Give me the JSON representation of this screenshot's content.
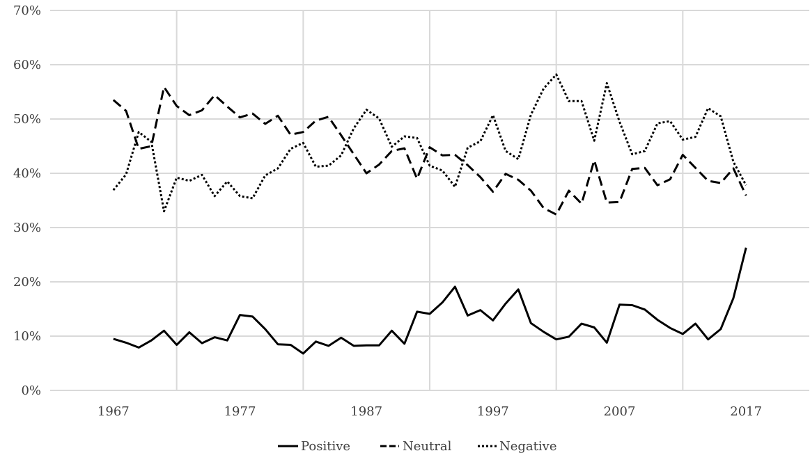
{
  "chart_data": {
    "type": "line",
    "title": "",
    "xlabel": "",
    "ylabel": "",
    "x": [
      1967,
      1968,
      1969,
      1970,
      1971,
      1972,
      1973,
      1974,
      1975,
      1976,
      1977,
      1978,
      1979,
      1980,
      1981,
      1982,
      1983,
      1984,
      1985,
      1986,
      1987,
      1988,
      1989,
      1990,
      1991,
      1992,
      1993,
      1994,
      1995,
      1996,
      1997,
      1998,
      1999,
      2000,
      2001,
      2002,
      2003,
      2004,
      2005,
      2006,
      2007,
      2008,
      2009,
      2010,
      2011,
      2012,
      2013,
      2014,
      2015,
      2016,
      2017
    ],
    "xlim": [
      1962,
      2022
    ],
    "ylim": [
      0,
      70
    ],
    "x_ticks": [
      1967,
      1977,
      1987,
      1997,
      2007,
      2017
    ],
    "y_ticks": [
      0,
      10,
      20,
      30,
      40,
      50,
      60,
      70
    ],
    "x_tick_labels": [
      "1967",
      "1977",
      "1987",
      "1997",
      "2007",
      "2017"
    ],
    "y_tick_labels": [
      "0%",
      "10%",
      "20%",
      "30%",
      "40%",
      "50%",
      "60%",
      "70%"
    ],
    "grid": true,
    "legend_position": "bottom",
    "series": [
      {
        "name": "Positive",
        "style": "solid",
        "color": "#000000",
        "values": [
          9.5,
          8.8,
          7.9,
          9.2,
          11.0,
          8.4,
          10.7,
          8.7,
          9.8,
          9.2,
          13.9,
          13.6,
          11.3,
          8.5,
          8.4,
          6.8,
          9.0,
          8.2,
          9.7,
          8.2,
          8.3,
          8.3,
          11.0,
          8.6,
          14.5,
          14.1,
          16.2,
          19.1,
          13.8,
          14.8,
          12.9,
          16.0,
          18.6,
          12.4,
          10.8,
          9.4,
          9.9,
          12.3,
          11.6,
          8.8,
          15.8,
          15.7,
          14.9,
          13.0,
          11.5,
          10.4,
          12.3,
          9.4,
          11.3,
          17.0,
          26.3
        ]
      },
      {
        "name": "Neutral",
        "style": "dashed",
        "color": "#000000",
        "values": [
          53.5,
          51.5,
          44.5,
          45.0,
          55.9,
          52.4,
          50.7,
          51.6,
          54.4,
          52.3,
          50.3,
          51.0,
          49.1,
          50.6,
          47.1,
          47.6,
          49.7,
          50.4,
          47.0,
          43.5,
          40.0,
          41.6,
          44.1,
          44.6,
          39.0,
          44.8,
          43.3,
          43.4,
          41.5,
          39.3,
          36.6,
          39.9,
          38.8,
          36.8,
          33.6,
          32.4,
          36.8,
          34.4,
          42.4,
          34.6,
          34.7,
          40.8,
          41.0,
          37.8,
          38.9,
          43.4,
          41.0,
          38.6,
          38.2,
          40.9,
          35.9
        ]
      },
      {
        "name": "Negative",
        "style": "dotted",
        "color": "#000000",
        "values": [
          36.9,
          39.8,
          47.6,
          45.8,
          33.0,
          39.2,
          38.6,
          39.7,
          35.8,
          38.5,
          35.8,
          35.4,
          39.6,
          40.9,
          44.5,
          45.6,
          41.2,
          41.4,
          43.3,
          48.3,
          51.7,
          50.1,
          44.9,
          46.8,
          46.5,
          41.4,
          40.5,
          37.5,
          44.7,
          45.9,
          50.7,
          44.1,
          42.6,
          50.8,
          55.6,
          58.2,
          53.3,
          53.3,
          46.0,
          56.6,
          49.5,
          43.5,
          44.1,
          49.2,
          49.6,
          46.2,
          46.7,
          52.0,
          50.5,
          42.1,
          37.8
        ]
      }
    ]
  }
}
